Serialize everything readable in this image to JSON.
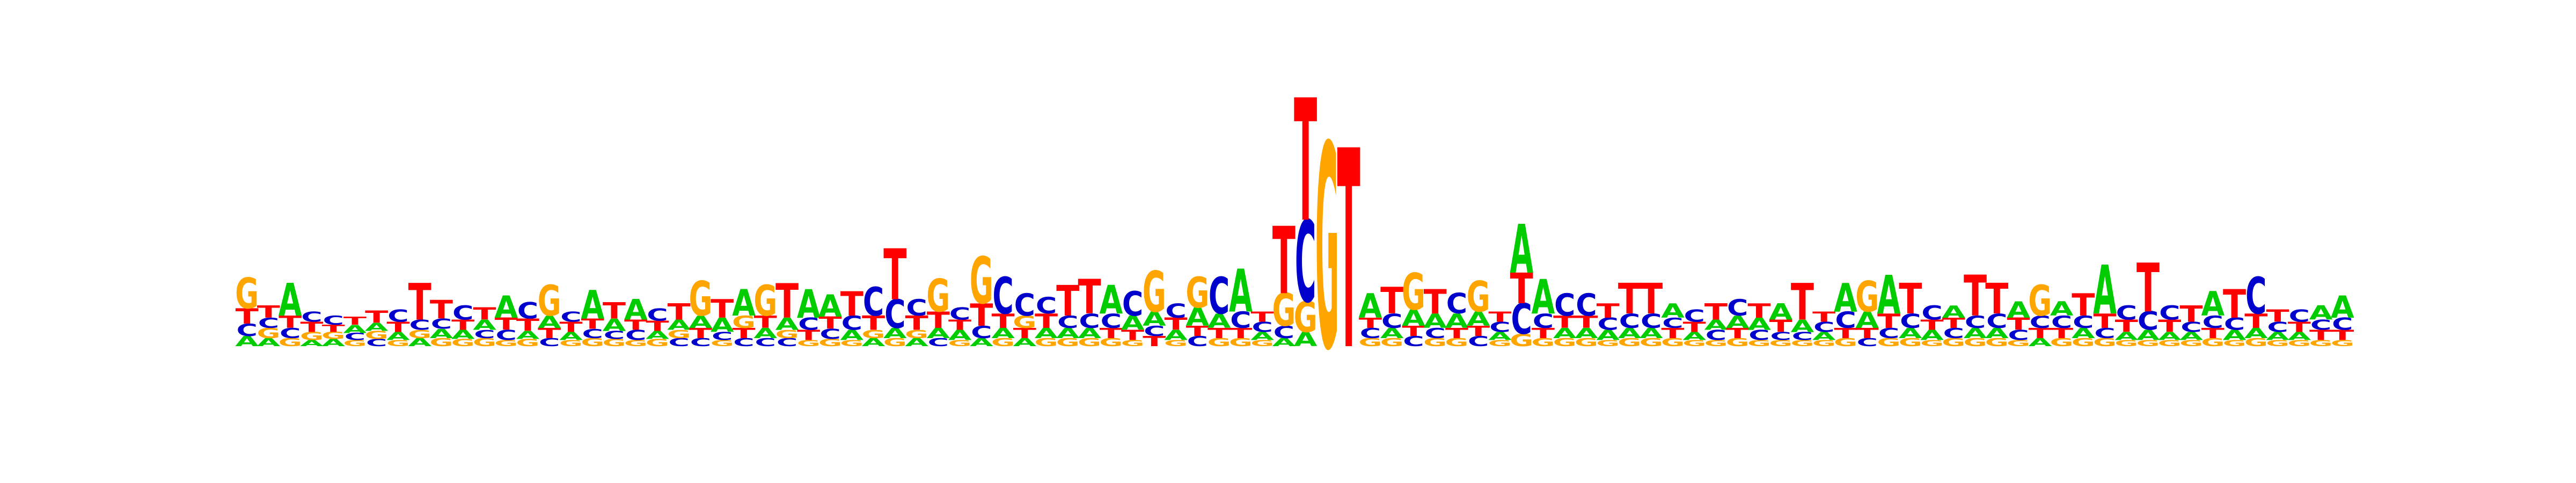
{
  "chart_data": {
    "type": "sequence-logo",
    "alphabet": [
      "A",
      "C",
      "G",
      "T"
    ],
    "colors": {
      "A": "#00cc00",
      "C": "#0000cc",
      "G": "#ffa500",
      "T": "#ff0000"
    },
    "ylim": [
      0,
      2
    ],
    "positions": [
      {
        "G": 0.3,
        "T": 0.15,
        "C": 0.12,
        "A": 0.1
      },
      {
        "T": 0.12,
        "G": 0.1,
        "C": 0.1,
        "A": 0.08
      },
      {
        "A": 0.32,
        "T": 0.12,
        "C": 0.1,
        "G": 0.08
      },
      {
        "T": 0.1,
        "C": 0.1,
        "G": 0.08,
        "A": 0.06
      },
      {
        "C": 0.09,
        "A": 0.07,
        "G": 0.07,
        "T": 0.07
      },
      {
        "A": 0.08,
        "T": 0.08,
        "C": 0.07,
        "G": 0.06
      },
      {
        "T": 0.12,
        "G": 0.08,
        "A": 0.08,
        "C": 0.07
      },
      {
        "C": 0.12,
        "T": 0.1,
        "A": 0.08,
        "G": 0.06
      },
      {
        "T": 0.36,
        "C": 0.1,
        "A": 0.08,
        "G": 0.08
      },
      {
        "T": 0.18,
        "C": 0.1,
        "A": 0.09,
        "G": 0.08
      },
      {
        "C": 0.14,
        "T": 0.1,
        "A": 0.09,
        "G": 0.07
      },
      {
        "T": 0.12,
        "A": 0.1,
        "G": 0.08,
        "C": 0.08
      },
      {
        "A": 0.22,
        "T": 0.12,
        "C": 0.1,
        "G": 0.06
      },
      {
        "C": 0.16,
        "T": 0.12,
        "A": 0.08,
        "G": 0.07
      },
      {
        "G": 0.3,
        "A": 0.12,
        "T": 0.1,
        "C": 0.08
      },
      {
        "T": 0.1,
        "C": 0.1,
        "A": 0.08,
        "G": 0.06
      },
      {
        "A": 0.28,
        "T": 0.1,
        "C": 0.09,
        "G": 0.08
      },
      {
        "T": 0.16,
        "A": 0.12,
        "C": 0.08,
        "G": 0.07
      },
      {
        "A": 0.2,
        "C": 0.1,
        "T": 0.1,
        "G": 0.06
      },
      {
        "C": 0.12,
        "T": 0.1,
        "A": 0.08,
        "G": 0.07
      },
      {
        "T": 0.16,
        "A": 0.1,
        "C": 0.08,
        "G": 0.08
      },
      {
        "G": 0.34,
        "A": 0.12,
        "T": 0.1,
        "C": 0.08
      },
      {
        "T": 0.18,
        "A": 0.14,
        "C": 0.08,
        "G": 0.06
      },
      {
        "A": 0.26,
        "G": 0.12,
        "T": 0.1,
        "C": 0.08
      },
      {
        "G": 0.3,
        "T": 0.12,
        "A": 0.1,
        "C": 0.08
      },
      {
        "T": 0.34,
        "A": 0.12,
        "C": 0.08,
        "G": 0.08
      },
      {
        "A": 0.28,
        "C": 0.12,
        "T": 0.1,
        "G": 0.06
      },
      {
        "A": 0.22,
        "T": 0.12,
        "C": 0.1,
        "G": 0.07
      },
      {
        "T": 0.24,
        "C": 0.14,
        "A": 0.1,
        "G": 0.06
      },
      {
        "C": 0.28,
        "T": 0.14,
        "A": 0.08,
        "G": 0.08
      },
      {
        "T": 0.5,
        "C": 0.28,
        "A": 0.1,
        "G": 0.08
      },
      {
        "C": 0.16,
        "T": 0.14,
        "A": 0.08,
        "G": 0.08
      },
      {
        "G": 0.32,
        "T": 0.16,
        "A": 0.1,
        "C": 0.08
      },
      {
        "C": 0.12,
        "A": 0.1,
        "T": 0.1,
        "G": 0.06
      },
      {
        "G": 0.46,
        "T": 0.22,
        "C": 0.12,
        "A": 0.08
      },
      {
        "C": 0.36,
        "T": 0.14,
        "A": 0.1,
        "G": 0.08
      },
      {
        "C": 0.22,
        "G": 0.12,
        "T": 0.1,
        "A": 0.08
      },
      {
        "C": 0.16,
        "T": 0.14,
        "A": 0.1,
        "G": 0.08
      },
      {
        "T": 0.3,
        "C": 0.12,
        "A": 0.1,
        "G": 0.08
      },
      {
        "T": 0.34,
        "C": 0.14,
        "A": 0.1,
        "G": 0.08
      },
      {
        "A": 0.28,
        "C": 0.14,
        "T": 0.1,
        "G": 0.08
      },
      {
        "C": 0.24,
        "A": 0.14,
        "T": 0.1,
        "G": 0.06
      },
      {
        "G": 0.4,
        "A": 0.14,
        "T": 0.1,
        "C": 0.1
      },
      {
        "C": 0.14,
        "T": 0.12,
        "A": 0.1,
        "G": 0.06
      },
      {
        "G": 0.3,
        "A": 0.18,
        "C": 0.1,
        "T": 0.1
      },
      {
        "C": 0.36,
        "A": 0.14,
        "T": 0.1,
        "G": 0.08
      },
      {
        "A": 0.42,
        "C": 0.16,
        "T": 0.1,
        "G": 0.08
      },
      {
        "C": 0.1,
        "T": 0.1,
        "A": 0.08,
        "G": 0.06
      },
      {
        "T": 0.66,
        "G": 0.32,
        "C": 0.12,
        "A": 0.08
      },
      {
        "T": 1.2,
        "C": 0.8,
        "G": 0.3,
        "A": 0.14
      },
      {
        "G": 2.0
      },
      {
        "T": 1.95
      },
      {
        "A": 0.24,
        "C": 0.1,
        "T": 0.1,
        "G": 0.08
      },
      {
        "T": 0.26,
        "C": 0.14,
        "A": 0.1,
        "G": 0.08
      },
      {
        "G": 0.36,
        "A": 0.16,
        "C": 0.1,
        "T": 0.1
      },
      {
        "T": 0.24,
        "A": 0.14,
        "C": 0.1,
        "G": 0.08
      },
      {
        "C": 0.2,
        "A": 0.14,
        "T": 0.1,
        "G": 0.08
      },
      {
        "G": 0.3,
        "A": 0.14,
        "C": 0.1,
        "T": 0.1
      },
      {
        "C": 0.1,
        "T": 0.1,
        "A": 0.08,
        "G": 0.06
      },
      {
        "A": 0.48,
        "C": 0.3,
        "T": 0.3,
        "G": 0.12
      },
      {
        "A": 0.34,
        "C": 0.14,
        "T": 0.1,
        "G": 0.08
      },
      {
        "C": 0.22,
        "T": 0.12,
        "A": 0.1,
        "G": 0.08
      },
      {
        "C": 0.22,
        "T": 0.12,
        "A": 0.1,
        "G": 0.08
      },
      {
        "T": 0.14,
        "C": 0.12,
        "A": 0.1,
        "G": 0.06
      },
      {
        "T": 0.3,
        "C": 0.14,
        "A": 0.1,
        "G": 0.08
      },
      {
        "T": 0.3,
        "C": 0.14,
        "A": 0.1,
        "G": 0.08
      },
      {
        "A": 0.14,
        "T": 0.1,
        "C": 0.1,
        "G": 0.08
      },
      {
        "C": 0.12,
        "T": 0.1,
        "A": 0.08,
        "G": 0.06
      },
      {
        "T": 0.16,
        "C": 0.1,
        "A": 0.1,
        "G": 0.06
      },
      {
        "C": 0.16,
        "A": 0.12,
        "T": 0.1,
        "G": 0.08
      },
      {
        "T": 0.14,
        "A": 0.12,
        "C": 0.1,
        "G": 0.06
      },
      {
        "A": 0.16,
        "T": 0.12,
        "C": 0.08,
        "G": 0.06
      },
      {
        "T": 0.36,
        "A": 0.12,
        "C": 0.08,
        "G": 0.06
      },
      {
        "C": 0.1,
        "T": 0.1,
        "A": 0.08,
        "G": 0.06
      },
      {
        "A": 0.28,
        "C": 0.16,
        "T": 0.1,
        "G": 0.08
      },
      {
        "G": 0.3,
        "A": 0.16,
        "T": 0.1,
        "C": 0.08
      },
      {
        "A": 0.38,
        "T": 0.14,
        "C": 0.1,
        "G": 0.08
      },
      {
        "T": 0.3,
        "C": 0.14,
        "A": 0.1,
        "G": 0.08
      },
      {
        "C": 0.14,
        "A": 0.1,
        "T": 0.1,
        "G": 0.06
      },
      {
        "A": 0.12,
        "C": 0.1,
        "T": 0.1,
        "G": 0.08
      },
      {
        "T": 0.4,
        "C": 0.12,
        "A": 0.1,
        "G": 0.08
      },
      {
        "T": 0.3,
        "C": 0.14,
        "A": 0.1,
        "G": 0.08
      },
      {
        "A": 0.16,
        "T": 0.12,
        "C": 0.1,
        "G": 0.06
      },
      {
        "G": 0.3,
        "C": 0.12,
        "T": 0.1,
        "A": 0.08
      },
      {
        "A": 0.14,
        "C": 0.12,
        "T": 0.1,
        "G": 0.08
      },
      {
        "T": 0.22,
        "C": 0.12,
        "A": 0.1,
        "G": 0.08
      },
      {
        "A": 0.48,
        "T": 0.14,
        "C": 0.1,
        "G": 0.08
      },
      {
        "C": 0.14,
        "T": 0.12,
        "A": 0.08,
        "G": 0.06
      },
      {
        "T": 0.48,
        "C": 0.18,
        "A": 0.1,
        "G": 0.06
      },
      {
        "C": 0.14,
        "T": 0.12,
        "A": 0.08,
        "G": 0.06
      },
      {
        "T": 0.16,
        "C": 0.1,
        "A": 0.08,
        "G": 0.06
      },
      {
        "A": 0.24,
        "C": 0.12,
        "T": 0.1,
        "G": 0.08
      },
      {
        "T": 0.28,
        "C": 0.12,
        "A": 0.1,
        "G": 0.06
      },
      {
        "C": 0.36,
        "T": 0.14,
        "A": 0.1,
        "G": 0.08
      },
      {
        "T": 0.12,
        "C": 0.1,
        "A": 0.08,
        "G": 0.06
      },
      {
        "C": 0.12,
        "T": 0.1,
        "A": 0.08,
        "G": 0.06
      },
      {
        "A": 0.14,
        "T": 0.1,
        "C": 0.1,
        "G": 0.06
      },
      {
        "A": 0.22,
        "C": 0.12,
        "T": 0.1,
        "G": 0.06
      }
    ]
  }
}
